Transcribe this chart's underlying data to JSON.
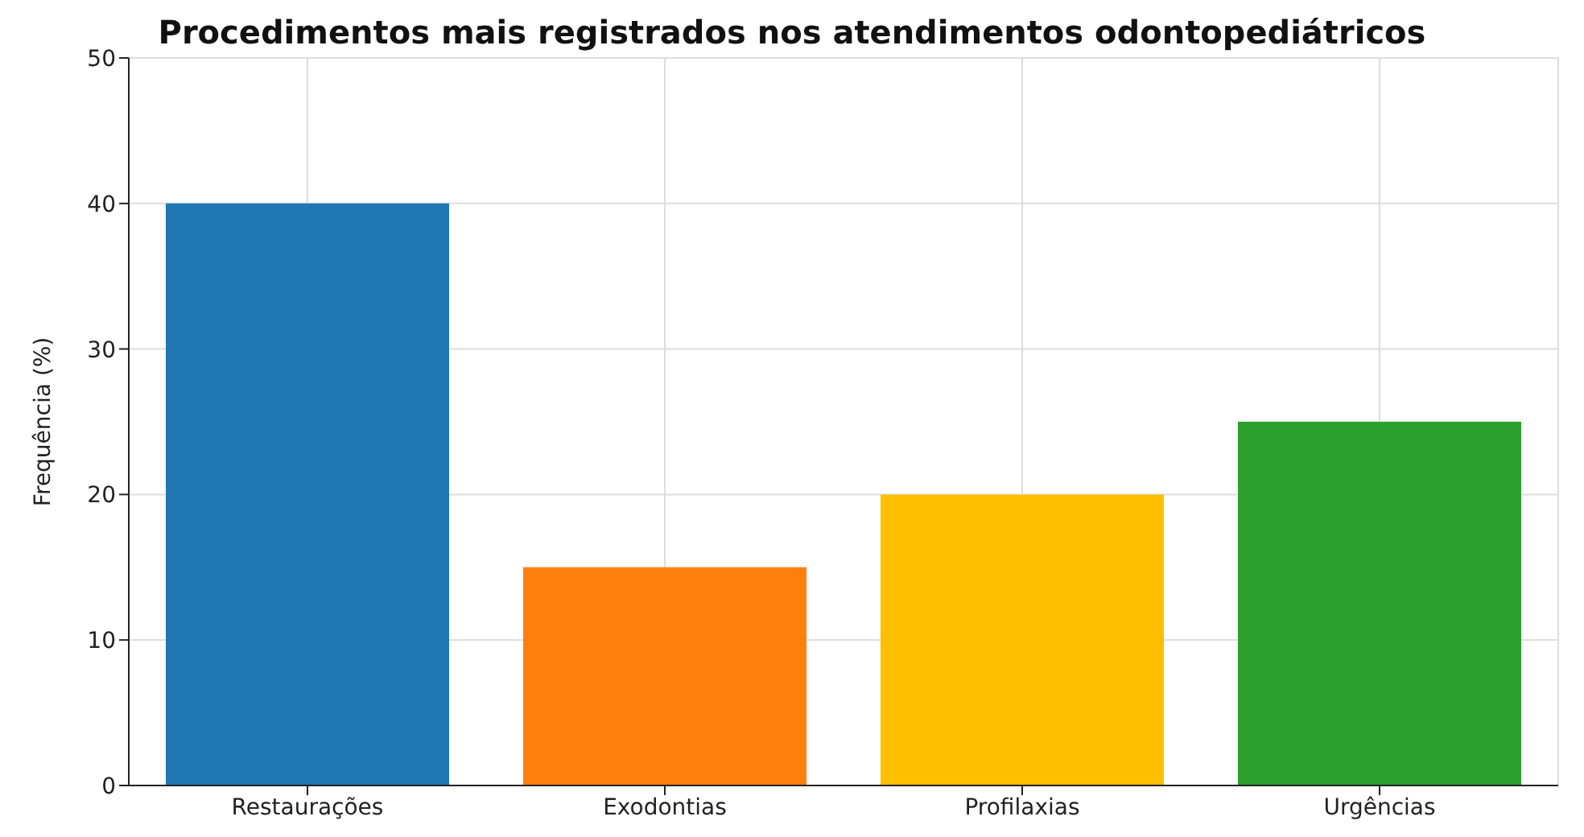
{
  "chart_data": {
    "type": "bar",
    "title": "Procedimentos mais registrados nos atendimentos odontopediátricos",
    "ylabel": "Frequência (%)",
    "categories": [
      "Restaurações",
      "Exodontias",
      "Profilaxias",
      "Urgências"
    ],
    "values": [
      40,
      15,
      20,
      25
    ],
    "colors": [
      "#1f77b4",
      "#ff7f0e",
      "#fdbf00",
      "#2ca02c"
    ],
    "ylim": [
      0,
      50
    ],
    "yticks": [
      0,
      10,
      20,
      30,
      40,
      50
    ],
    "grid": true
  }
}
